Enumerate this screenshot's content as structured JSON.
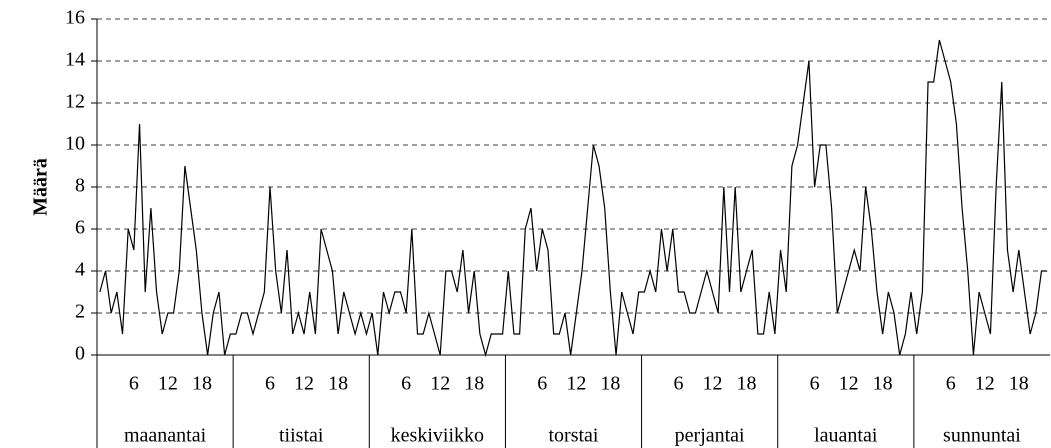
{
  "chart_data": {
    "type": "line",
    "y_label": "Määrä",
    "days": [
      "maanantai",
      "tiistai",
      "keskiviikko",
      "torstai",
      "perjantai",
      "lauantai",
      "sunnuntai"
    ],
    "categories": [
      null,
      null,
      null,
      null,
      null,
      null,
      "6",
      null,
      null,
      null,
      null,
      null,
      "12",
      null,
      null,
      null,
      null,
      null,
      "18",
      null,
      null,
      null,
      null,
      null,
      null,
      null,
      null,
      null,
      null,
      null,
      "6",
      null,
      null,
      null,
      null,
      null,
      "12",
      null,
      null,
      null,
      null,
      null,
      "18",
      null,
      null,
      null,
      null,
      null,
      null,
      null,
      null,
      null,
      null,
      null,
      "6",
      null,
      null,
      null,
      null,
      null,
      "12",
      null,
      null,
      null,
      null,
      null,
      "18",
      null,
      null,
      null,
      null,
      null,
      null,
      null,
      null,
      null,
      null,
      null,
      "6",
      null,
      null,
      null,
      null,
      null,
      "12",
      null,
      null,
      null,
      null,
      null,
      "18",
      null,
      null,
      null,
      null,
      null,
      null,
      null,
      null,
      null,
      null,
      null,
      "6",
      null,
      null,
      null,
      null,
      null,
      "12",
      null,
      null,
      null,
      null,
      null,
      "18",
      null,
      null,
      null,
      null,
      null,
      null,
      null,
      null,
      null,
      null,
      null,
      "6",
      null,
      null,
      null,
      null,
      null,
      "12",
      null,
      null,
      null,
      null,
      null,
      "18",
      null,
      null,
      null,
      null,
      null,
      null,
      null,
      null,
      null,
      null,
      null,
      "6",
      null,
      null,
      null,
      null,
      null,
      "12",
      null,
      null,
      null,
      null,
      null,
      "18",
      null,
      null,
      null,
      null,
      null
    ],
    "values": [
      3,
      4,
      2,
      3,
      1,
      6,
      5,
      11,
      3,
      7,
      3,
      1,
      2,
      2,
      4,
      9,
      7,
      5,
      2,
      0,
      2,
      3,
      0,
      1,
      1,
      2,
      2,
      1,
      2,
      3,
      8,
      4,
      2,
      5,
      1,
      2,
      1,
      3,
      1,
      6,
      5,
      4,
      1,
      3,
      2,
      1,
      2,
      1,
      2,
      0,
      3,
      2,
      3,
      3,
      2,
      6,
      1,
      1,
      2,
      1,
      0,
      4,
      4,
      3,
      5,
      2,
      4,
      1,
      0,
      1,
      1,
      1,
      4,
      1,
      1,
      6,
      7,
      4,
      6,
      5,
      1,
      1,
      2,
      0,
      2,
      4,
      7,
      10,
      9,
      7,
      3,
      0,
      3,
      2,
      1,
      3,
      3,
      4,
      3,
      6,
      4,
      6,
      3,
      3,
      2,
      2,
      3,
      4,
      3,
      2,
      8,
      3,
      8,
      3,
      4,
      5,
      1,
      1,
      3,
      1,
      5,
      3,
      9,
      10,
      12,
      14,
      8,
      10,
      10,
      7,
      2,
      3,
      4,
      5,
      4,
      8,
      6,
      3,
      1,
      3,
      2,
      0,
      1,
      3,
      1,
      3,
      13,
      13,
      15,
      14,
      13,
      11,
      7,
      4,
      0,
      3,
      2,
      1,
      8,
      13,
      5,
      3,
      5,
      3,
      1,
      2,
      4,
      4
    ],
    "color": "#000000",
    "ylim": [
      0,
      16
    ],
    "yticks": [
      0,
      2,
      4,
      6,
      8,
      10,
      12,
      14,
      16
    ],
    "grid": true
  }
}
